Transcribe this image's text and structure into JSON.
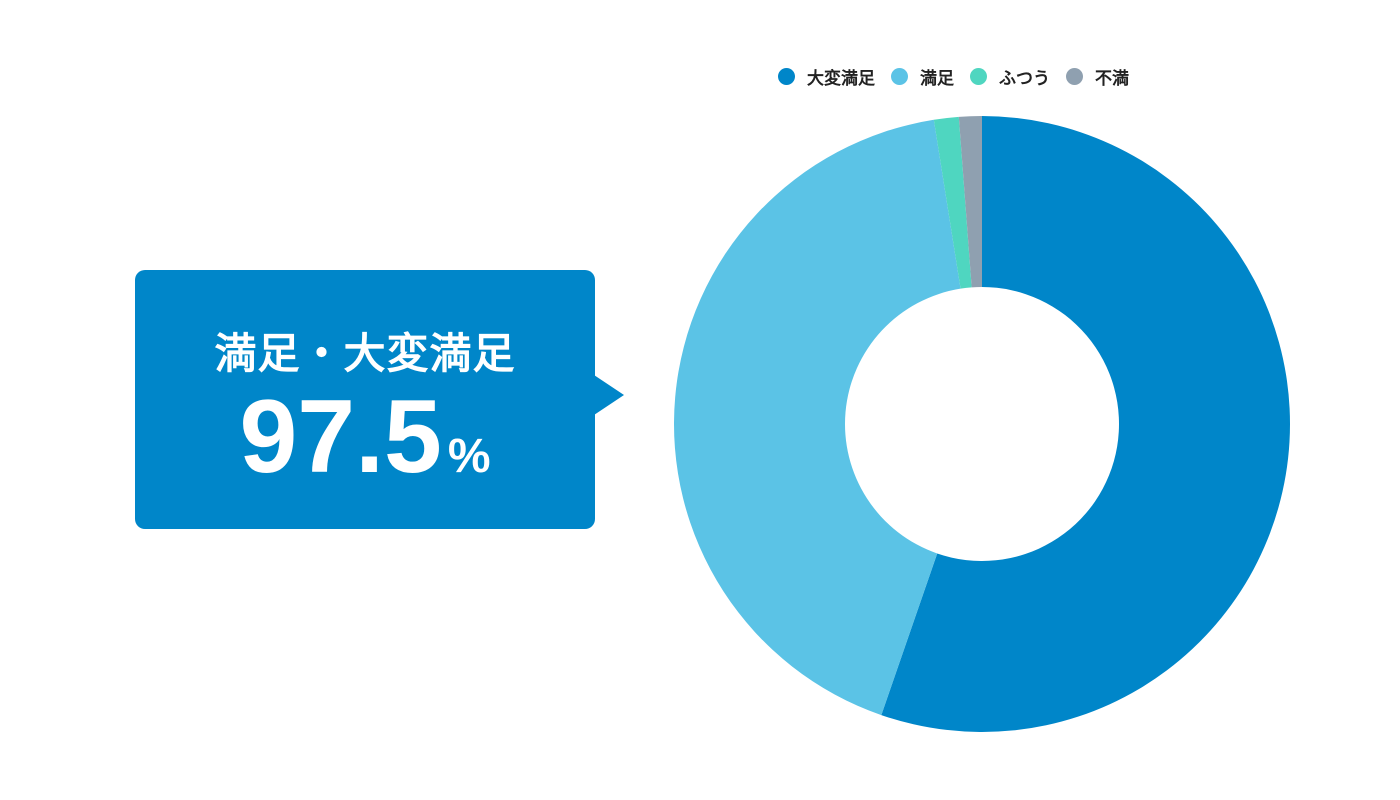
{
  "chart_data": {
    "type": "pie",
    "donut": true,
    "categories": [
      "大変満足",
      "満足",
      "ふつう",
      "不満"
    ],
    "values": [
      55.3,
      42.2,
      1.3,
      1.2
    ],
    "unit": "%",
    "colors": [
      "#0086C9",
      "#5BC3E6",
      "#4FD6C0",
      "#8FA0B0"
    ],
    "legend_position": "top-right",
    "start": "top",
    "direction": "clockwise"
  },
  "callout": {
    "label": "満足・大変満足",
    "value": "97.5",
    "unit": "%",
    "color": "#0086C9"
  }
}
